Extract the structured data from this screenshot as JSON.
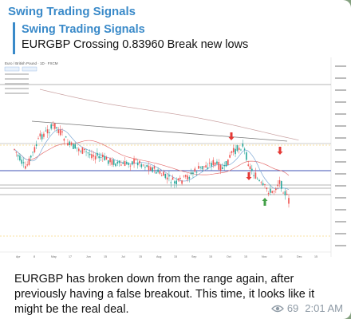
{
  "message": {
    "sender": "Swing Trading Signals",
    "reply": {
      "title": "Swing Trading Signals",
      "text": "EURGBP Crossing 0.83960 Break new lows"
    },
    "text": "EURGBP has broken down from the range again, after previously having a false breakout. This time, it looks like it might be the real deal.",
    "views": "69",
    "time": "2:01 AM"
  },
  "chart_header": {
    "symbol": "Euro / British Pound · 1D · FXCM"
  },
  "chart_data": {
    "type": "candlestick",
    "x_ticks": [
      "Apr",
      "8",
      "May",
      "17",
      "Jun",
      "15",
      "Jul",
      "15",
      "Aug",
      "15",
      "Sep",
      "15",
      "Oct",
      "15",
      "Nov",
      "15",
      "Dec",
      "15"
    ],
    "colors": {
      "up": "#26a69a",
      "down": "#ef5350",
      "arrow": "#e53935",
      "support": "#43a047"
    }
  }
}
